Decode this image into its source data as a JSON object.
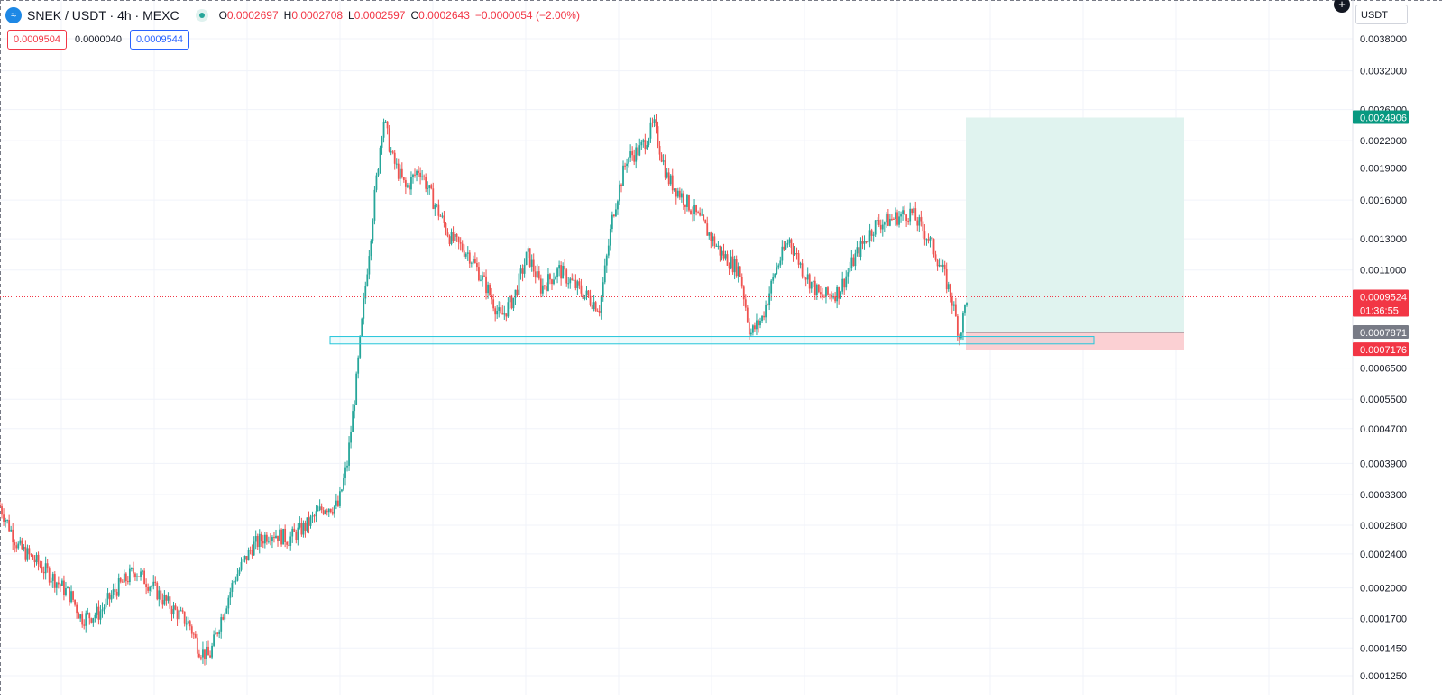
{
  "header": {
    "symbol_title": "SNEK / USDT · 4h · MEXC",
    "ohlc": [
      {
        "key": "O",
        "value": "0.0002697"
      },
      {
        "key": "H",
        "value": "0.0002708"
      },
      {
        "key": "L",
        "value": "0.0002597"
      },
      {
        "key": "C",
        "value": "0.0002643"
      }
    ],
    "change": "−0.0000054 (−2.00%)",
    "sell_price": "0.0009504",
    "spread": "0.0000040",
    "buy_price": "0.0009544",
    "currency": "USDT",
    "plus_glyph": "+",
    "logo_glyph": "≈"
  },
  "colors": {
    "up": "#26a69a",
    "down": "#ef5350",
    "profit_zone": "#e0f3ef",
    "loss_zone": "#fbd0d3",
    "support_box": "#26c6da",
    "current_price_line": "#f23645"
  },
  "chart_data": {
    "type": "candlestick",
    "scale": "log",
    "timeframe": "4h",
    "y_axis_ticks": [
      "0.0038000",
      "0.0032000",
      "0.0026000",
      "0.0022000",
      "0.0019000",
      "0.0016000",
      "0.0013000",
      "0.0011000",
      "0.0006500",
      "0.0005500",
      "0.0004700",
      "0.0003900",
      "0.0003300",
      "0.0002800",
      "0.0002400",
      "0.0002000",
      "0.0001700",
      "0.0001450",
      "0.0001250"
    ],
    "price_labels": [
      {
        "label": "0.0024906",
        "value": 0.0024906,
        "kind": "target",
        "color": "#089981"
      },
      {
        "label": "0.0009524",
        "value": 0.0009524,
        "kind": "current",
        "color": "#f23645",
        "sub": "01:36:55"
      },
      {
        "label": "0.0007871",
        "value": 0.0007871,
        "kind": "entry",
        "color": "#787b86"
      },
      {
        "label": "0.0007176",
        "value": 0.0007176,
        "kind": "stop",
        "color": "#f23645"
      }
    ],
    "position": {
      "entry": 0.0007871,
      "target": 0.0024906,
      "stop": 0.0007176
    },
    "support_zone": {
      "low": 0.00074,
      "high": 0.00077
    },
    "price_path": [
      [
        0,
        0.00031
      ],
      [
        0.02,
        0.00025
      ],
      [
        0.04,
        0.00023
      ],
      [
        0.06,
        0.00021
      ],
      [
        0.08,
        0.00019
      ],
      [
        0.09,
        0.00017
      ],
      [
        0.11,
        0.000175
      ],
      [
        0.13,
        0.0002
      ],
      [
        0.15,
        0.00022
      ],
      [
        0.17,
        0.0002
      ],
      [
        0.19,
        0.00018
      ],
      [
        0.21,
        0.000165
      ],
      [
        0.22,
        0.000145
      ],
      [
        0.232,
        0.000138
      ],
      [
        0.245,
        0.00017
      ],
      [
        0.26,
        0.00021
      ],
      [
        0.28,
        0.00025
      ],
      [
        0.3,
        0.00027
      ],
      [
        0.32,
        0.00026
      ],
      [
        0.34,
        0.00028
      ],
      [
        0.36,
        0.00031
      ],
      [
        0.375,
        0.00031
      ],
      [
        0.385,
        0.00039
      ],
      [
        0.395,
        0.0006
      ],
      [
        0.405,
        0.001
      ],
      [
        0.415,
        0.0016
      ],
      [
        0.425,
        0.0025
      ],
      [
        0.435,
        0.002
      ],
      [
        0.45,
        0.0017
      ],
      [
        0.465,
        0.0019
      ],
      [
        0.48,
        0.0016
      ],
      [
        0.5,
        0.0013
      ],
      [
        0.52,
        0.0012
      ],
      [
        0.54,
        0.001
      ],
      [
        0.555,
        0.00085
      ],
      [
        0.57,
        0.00095
      ],
      [
        0.585,
        0.0012
      ],
      [
        0.6,
        0.001
      ],
      [
        0.62,
        0.0011
      ],
      [
        0.64,
        0.001
      ],
      [
        0.665,
        0.0009
      ],
      [
        0.68,
        0.0015
      ],
      [
        0.695,
        0.002
      ],
      [
        0.71,
        0.0021
      ],
      [
        0.725,
        0.0024
      ],
      [
        0.74,
        0.0018
      ],
      [
        0.76,
        0.0016
      ],
      [
        0.78,
        0.0014
      ],
      [
        0.8,
        0.0012
      ],
      [
        0.82,
        0.0011
      ],
      [
        0.832,
        0.00078
      ],
      [
        0.845,
        0.00085
      ],
      [
        0.86,
        0.0011
      ],
      [
        0.875,
        0.0013
      ],
      [
        0.89,
        0.0011
      ],
      [
        0.91,
        0.00095
      ],
      [
        0.93,
        0.00098
      ],
      [
        0.95,
        0.0012
      ],
      [
        0.97,
        0.0014
      ],
      [
        0.99,
        0.00145
      ],
      [
        1.01,
        0.0015
      ],
      [
        1.03,
        0.0013
      ],
      [
        1.045,
        0.0011
      ],
      [
        1.055,
        0.00095
      ],
      [
        1.064,
        0.00077
      ],
      [
        1.072,
        0.00095
      ]
    ]
  }
}
